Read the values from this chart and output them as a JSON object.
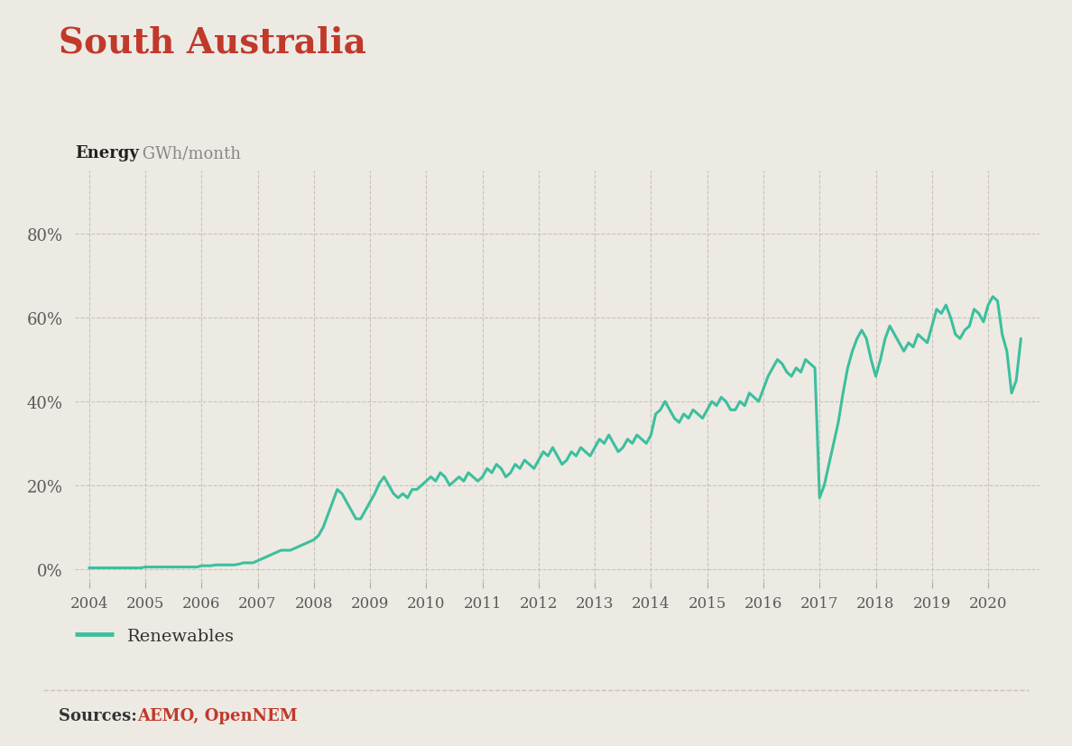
{
  "title": "South Australia",
  "title_color": "#c0392b",
  "ylabel_bold": "Energy",
  "ylabel_light": " GWh/month",
  "background_color": "#edeae4",
  "line_color": "#3dbf9e",
  "yticks": [
    0,
    20,
    40,
    60,
    80
  ],
  "ytick_labels": [
    "0%",
    "20%",
    "40%",
    "60%",
    "80%"
  ],
  "ylim": [
    -3,
    95
  ],
  "xlim_start": 2003.75,
  "xlim_end": 2020.92,
  "xtick_years": [
    2004,
    2005,
    2006,
    2007,
    2008,
    2009,
    2010,
    2011,
    2012,
    2013,
    2014,
    2015,
    2016,
    2017,
    2018,
    2019,
    2020
  ],
  "legend_label": "Renewables",
  "source_text": "Sources: ",
  "source_highlight": "AEMO, OpenNEM",
  "source_color": "#c0392b",
  "grid_color": "#c8c3bb",
  "data": {
    "x": [
      2004.0,
      2004.083,
      2004.167,
      2004.25,
      2004.333,
      2004.417,
      2004.5,
      2004.583,
      2004.667,
      2004.75,
      2004.833,
      2004.917,
      2005.0,
      2005.083,
      2005.167,
      2005.25,
      2005.333,
      2005.417,
      2005.5,
      2005.583,
      2005.667,
      2005.75,
      2005.833,
      2005.917,
      2006.0,
      2006.083,
      2006.167,
      2006.25,
      2006.333,
      2006.417,
      2006.5,
      2006.583,
      2006.667,
      2006.75,
      2006.833,
      2006.917,
      2007.0,
      2007.083,
      2007.167,
      2007.25,
      2007.333,
      2007.417,
      2007.5,
      2007.583,
      2007.667,
      2007.75,
      2007.833,
      2007.917,
      2008.0,
      2008.083,
      2008.167,
      2008.25,
      2008.333,
      2008.417,
      2008.5,
      2008.583,
      2008.667,
      2008.75,
      2008.833,
      2008.917,
      2009.0,
      2009.083,
      2009.167,
      2009.25,
      2009.333,
      2009.417,
      2009.5,
      2009.583,
      2009.667,
      2009.75,
      2009.833,
      2009.917,
      2010.0,
      2010.083,
      2010.167,
      2010.25,
      2010.333,
      2010.417,
      2010.5,
      2010.583,
      2010.667,
      2010.75,
      2010.833,
      2010.917,
      2011.0,
      2011.083,
      2011.167,
      2011.25,
      2011.333,
      2011.417,
      2011.5,
      2011.583,
      2011.667,
      2011.75,
      2011.833,
      2011.917,
      2012.0,
      2012.083,
      2012.167,
      2012.25,
      2012.333,
      2012.417,
      2012.5,
      2012.583,
      2012.667,
      2012.75,
      2012.833,
      2012.917,
      2013.0,
      2013.083,
      2013.167,
      2013.25,
      2013.333,
      2013.417,
      2013.5,
      2013.583,
      2013.667,
      2013.75,
      2013.833,
      2013.917,
      2014.0,
      2014.083,
      2014.167,
      2014.25,
      2014.333,
      2014.417,
      2014.5,
      2014.583,
      2014.667,
      2014.75,
      2014.833,
      2014.917,
      2015.0,
      2015.083,
      2015.167,
      2015.25,
      2015.333,
      2015.417,
      2015.5,
      2015.583,
      2015.667,
      2015.75,
      2015.833,
      2015.917,
      2016.0,
      2016.083,
      2016.167,
      2016.25,
      2016.333,
      2016.417,
      2016.5,
      2016.583,
      2016.667,
      2016.75,
      2016.833,
      2016.917,
      2017.0,
      2017.083,
      2017.167,
      2017.25,
      2017.333,
      2017.417,
      2017.5,
      2017.583,
      2017.667,
      2017.75,
      2017.833,
      2017.917,
      2018.0,
      2018.083,
      2018.167,
      2018.25,
      2018.333,
      2018.417,
      2018.5,
      2018.583,
      2018.667,
      2018.75,
      2018.833,
      2018.917,
      2019.0,
      2019.083,
      2019.167,
      2019.25,
      2019.333,
      2019.417,
      2019.5,
      2019.583,
      2019.667,
      2019.75,
      2019.833,
      2019.917,
      2020.0,
      2020.083,
      2020.167,
      2020.25,
      2020.333,
      2020.417,
      2020.5,
      2020.583
    ],
    "y": [
      0.3,
      0.3,
      0.3,
      0.3,
      0.3,
      0.3,
      0.3,
      0.3,
      0.3,
      0.3,
      0.3,
      0.3,
      0.5,
      0.5,
      0.5,
      0.5,
      0.5,
      0.5,
      0.5,
      0.5,
      0.5,
      0.5,
      0.5,
      0.5,
      0.8,
      0.8,
      0.8,
      1.0,
      1.0,
      1.0,
      1.0,
      1.0,
      1.2,
      1.5,
      1.5,
      1.5,
      2.0,
      2.5,
      3.0,
      3.5,
      4.0,
      4.5,
      4.5,
      4.5,
      5.0,
      5.5,
      6.0,
      6.5,
      7.0,
      8.0,
      10.0,
      13.0,
      16.0,
      19.0,
      18.0,
      16.0,
      14.0,
      12.0,
      12.0,
      14.0,
      16.0,
      18.0,
      20.5,
      22.0,
      20.0,
      18.0,
      17.0,
      18.0,
      17.0,
      19.0,
      19.0,
      20.0,
      21.0,
      22.0,
      21.0,
      23.0,
      22.0,
      20.0,
      21.0,
      22.0,
      21.0,
      23.0,
      22.0,
      21.0,
      22.0,
      24.0,
      23.0,
      25.0,
      24.0,
      22.0,
      23.0,
      25.0,
      24.0,
      26.0,
      25.0,
      24.0,
      26.0,
      28.0,
      27.0,
      29.0,
      27.0,
      25.0,
      26.0,
      28.0,
      27.0,
      29.0,
      28.0,
      27.0,
      29.0,
      31.0,
      30.0,
      32.0,
      30.0,
      28.0,
      29.0,
      31.0,
      30.0,
      32.0,
      31.0,
      30.0,
      32.0,
      37.0,
      38.0,
      40.0,
      38.0,
      36.0,
      35.0,
      37.0,
      36.0,
      38.0,
      37.0,
      36.0,
      38.0,
      40.0,
      39.0,
      41.0,
      40.0,
      38.0,
      38.0,
      40.0,
      39.0,
      42.0,
      41.0,
      40.0,
      43.0,
      46.0,
      48.0,
      50.0,
      49.0,
      47.0,
      46.0,
      48.0,
      47.0,
      50.0,
      49.0,
      48.0,
      17.0,
      20.0,
      25.0,
      30.0,
      35.0,
      42.0,
      48.0,
      52.0,
      55.0,
      57.0,
      55.0,
      50.0,
      46.0,
      50.0,
      55.0,
      58.0,
      56.0,
      54.0,
      52.0,
      54.0,
      53.0,
      56.0,
      55.0,
      54.0,
      58.0,
      62.0,
      61.0,
      63.0,
      60.0,
      56.0,
      55.0,
      57.0,
      58.0,
      62.0,
      61.0,
      59.0,
      63.0,
      65.0,
      64.0,
      56.0,
      52.0,
      42.0,
      45.0,
      55.0
    ]
  }
}
